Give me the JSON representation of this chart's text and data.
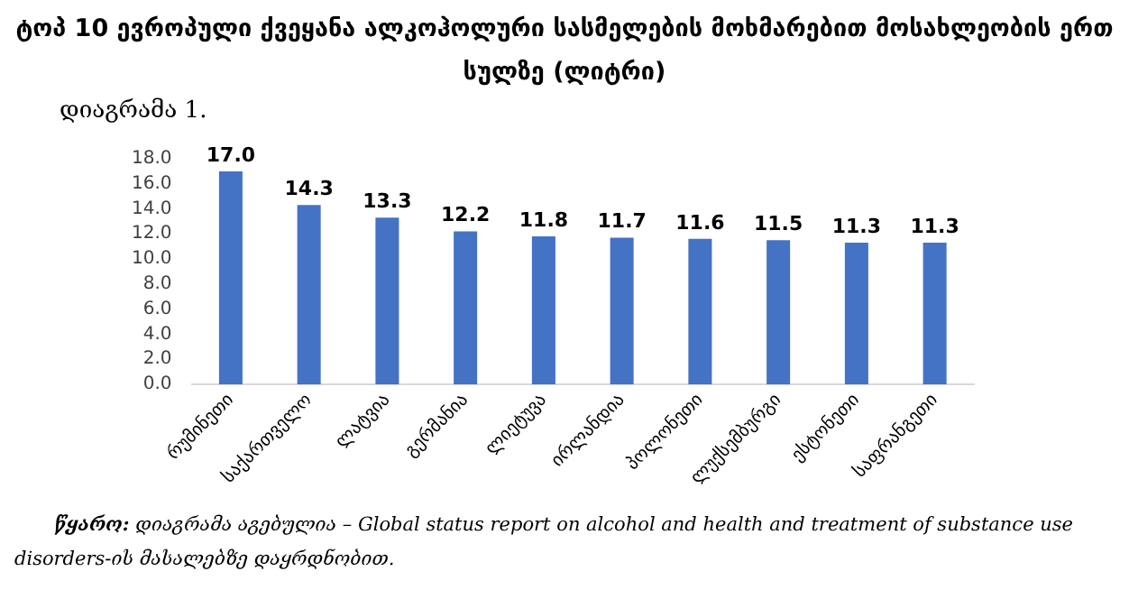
{
  "chart_data": {
    "type": "bar",
    "title": "ტოპ 10 ევროპული ქვეყანა ალკოჰოლური სასმელების მოხმარებით მოსახლეობის ერთ სულზე (ლიტრი)",
    "subtitle": "დიაგრამა 1.",
    "categories": [
      "რუმინეთი",
      "საქართველო",
      "ლატვია",
      "გერმანია",
      "ლიეტუვა",
      "ირლანდია",
      "პოლონეთი",
      "ლუქსემბურგი",
      "ესტონეთი",
      "საფრანგეთი"
    ],
    "values": [
      17.0,
      14.3,
      13.3,
      12.2,
      11.8,
      11.7,
      11.6,
      11.5,
      11.3,
      11.3
    ],
    "value_labels": [
      "17.0",
      "14.3",
      "13.3",
      "12.2",
      "11.8",
      "11.7",
      "11.6",
      "11.5",
      "11.3",
      "11.3"
    ],
    "color": "#4472c4",
    "ylim": [
      0,
      18
    ],
    "yticks": [
      {
        "value": 0,
        "label": "0.0"
      },
      {
        "value": 2,
        "label": "2.0"
      },
      {
        "value": 4,
        "label": "4.0"
      },
      {
        "value": 6,
        "label": "6.0"
      },
      {
        "value": 8,
        "label": "8.0"
      },
      {
        "value": 10,
        "label": "10.0"
      },
      {
        "value": 12,
        "label": "12.0"
      },
      {
        "value": 14,
        "label": "14.0"
      },
      {
        "value": 16,
        "label": "16.0"
      },
      {
        "value": 18,
        "label": "18.0"
      }
    ],
    "grid": false,
    "legend": false,
    "annotations": [
      "წყარო: დიაგრამა აგებულია – Global status report on alcohol and health and treatment of substance use disorders-ის მასალებზე დაყრდნობით."
    ]
  }
}
